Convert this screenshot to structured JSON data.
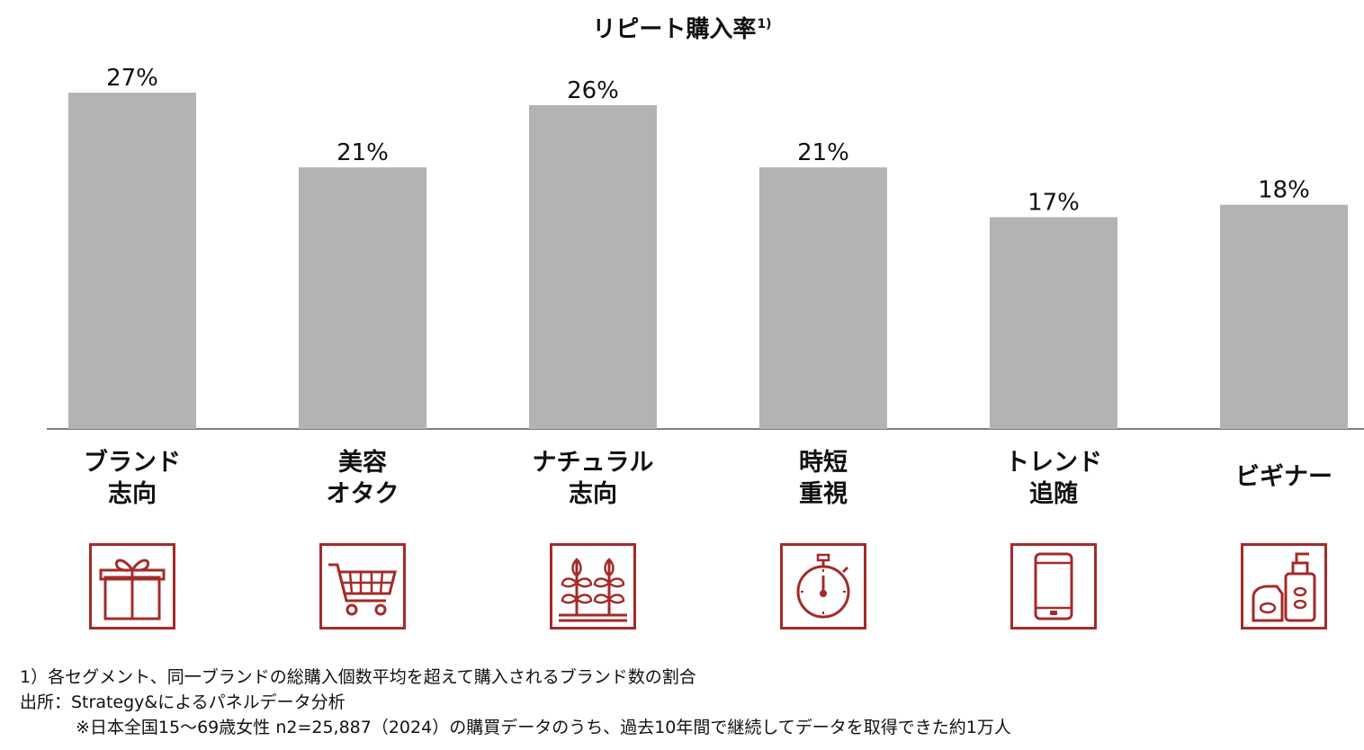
{
  "chart_data": {
    "type": "bar",
    "title": "リピート購入率",
    "title_superscript": "1)",
    "categories": [
      "ブランド\n志向",
      "美容\nオタク",
      "ナチュラル\n志向",
      "時短\n重視",
      "トレンド\n追随",
      "ビギナー"
    ],
    "values": [
      27,
      21,
      26,
      21,
      17,
      18
    ],
    "data_labels": [
      "27%",
      "21%",
      "26%",
      "21%",
      "17%",
      "18%"
    ],
    "ylim": [
      0,
      30
    ],
    "grid": false,
    "bar_color": "#b3b3b3",
    "icons": [
      "gift-icon",
      "shopping-cart-icon",
      "plant-icon",
      "stopwatch-icon",
      "smartphone-icon",
      "cosmetics-icon"
    ],
    "icon_color": "#a32b2b"
  },
  "footnotes": {
    "note1": "1）各セグメント、同一ブランドの総購入個数平均を超えて購入されるブランド数の割合",
    "source": "出所：Strategy&によるパネルデータ分析",
    "source_detail": "※日本全国15～69歳女性 n2=25,887（2024）の購買データのうち、過去10年間で継続してデータを取得できた約1万人"
  }
}
